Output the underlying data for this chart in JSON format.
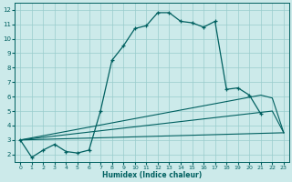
{
  "xlabel": "Humidex (Indice chaleur)",
  "xlim": [
    -0.5,
    23.5
  ],
  "ylim": [
    1.5,
    12.5
  ],
  "xticks": [
    0,
    1,
    2,
    3,
    4,
    5,
    6,
    7,
    8,
    9,
    10,
    11,
    12,
    13,
    14,
    15,
    16,
    17,
    18,
    19,
    20,
    21,
    22,
    23
  ],
  "yticks": [
    2,
    3,
    4,
    5,
    6,
    7,
    8,
    9,
    10,
    11,
    12
  ],
  "background_color": "#cceaea",
  "grid_color": "#99cccc",
  "line_color": "#006060",
  "line1_x": [
    0,
    1,
    2,
    3,
    4,
    5,
    6,
    7,
    8,
    9,
    10,
    11,
    12,
    13,
    14,
    15,
    16,
    17,
    18,
    19,
    20,
    21
  ],
  "line1_y": [
    3.0,
    1.8,
    2.3,
    2.7,
    2.2,
    2.1,
    2.3,
    5.0,
    8.5,
    9.5,
    10.7,
    10.9,
    11.8,
    11.8,
    11.2,
    11.1,
    10.8,
    11.2,
    6.5,
    6.6,
    6.1,
    4.8
  ],
  "line2_x": [
    0,
    21,
    22,
    23
  ],
  "line2_y": [
    3.0,
    6.1,
    5.9,
    3.5
  ],
  "line3_x": [
    0,
    22,
    23
  ],
  "line3_y": [
    3.0,
    5.0,
    3.5
  ],
  "line4_x": [
    0,
    23
  ],
  "line4_y": [
    3.0,
    3.5
  ]
}
